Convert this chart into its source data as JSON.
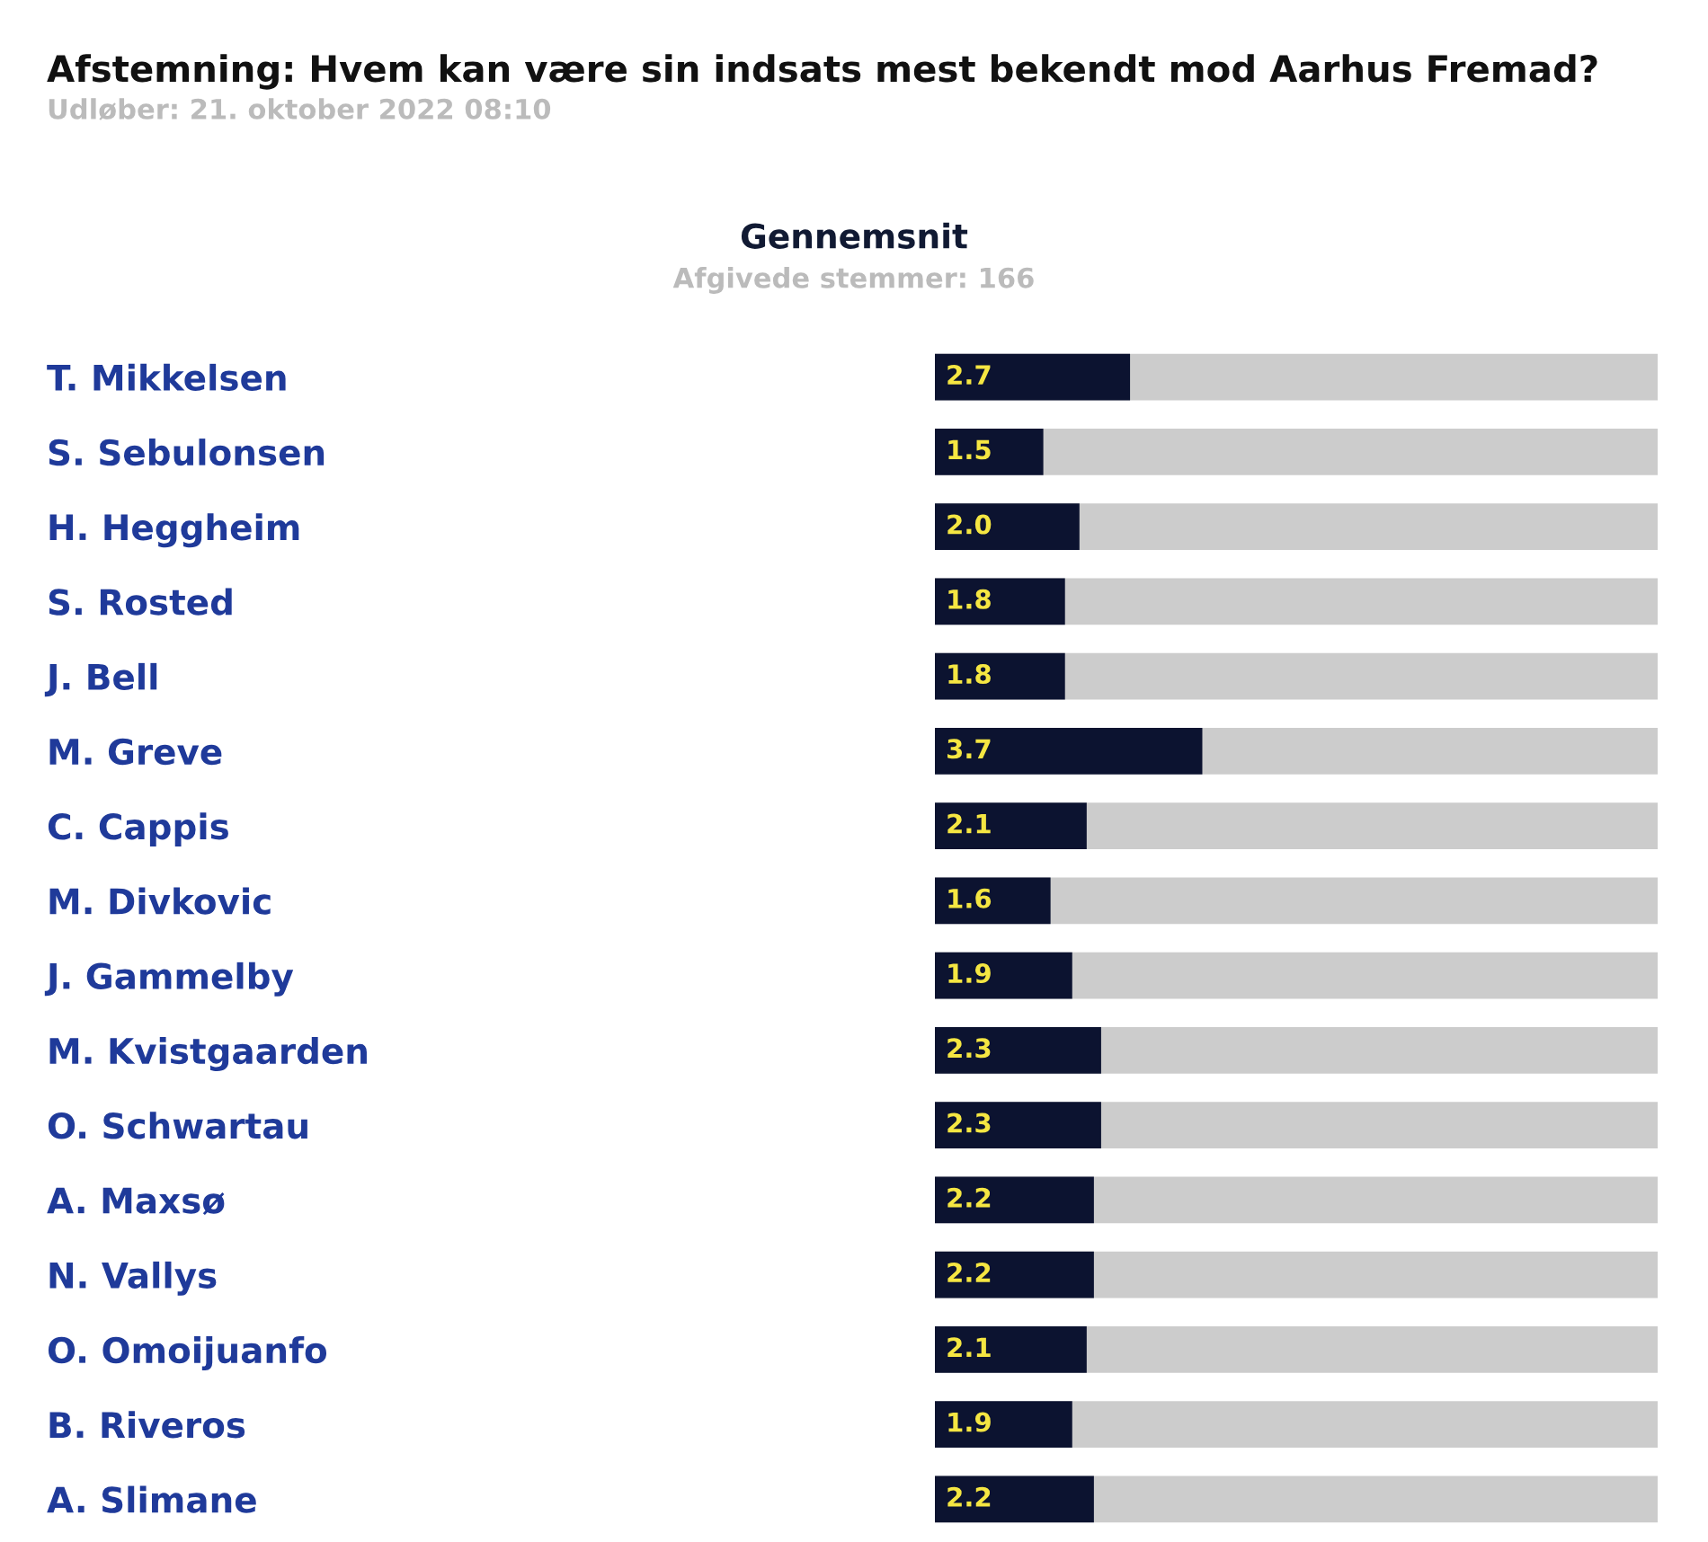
{
  "chart_data": {
    "type": "bar",
    "orientation": "horizontal",
    "title": "Afstemning: Hvem kan være sin indsats mest bekendt mod Aarhus Fremad?",
    "subtitle": "Udløber: 21. oktober 2022 08:10",
    "annotations": [
      "Gennemsnit",
      "Afgivede stemmer: 166"
    ],
    "categories": [
      "T. Mikkelsen",
      "S. Sebulonsen",
      "H. Heggheim",
      "S. Rosted",
      "J. Bell",
      "M. Greve",
      "C. Cappis",
      "M. Divkovic",
      "J. Gammelby",
      "M. Kvistgaarden",
      "O. Schwartau",
      "A. Maxsø",
      "N. Vallys",
      "O. Omoijuanfo",
      "B. Riveros",
      "A. Slimane"
    ],
    "values": [
      2.7,
      1.5,
      2.0,
      1.8,
      1.8,
      3.7,
      2.1,
      1.6,
      1.9,
      2.3,
      2.3,
      2.2,
      2.2,
      2.1,
      1.9,
      2.2
    ],
    "value_labels": [
      "2.7",
      "1.5",
      "2.0",
      "1.8",
      "1.8",
      "3.7",
      "2.1",
      "1.6",
      "1.9",
      "2.3",
      "2.3",
      "2.2",
      "2.2",
      "2.1",
      "1.9",
      "2.2"
    ],
    "color": "#0c1330",
    "xlim": [
      0,
      10
    ],
    "tick_labels": "y",
    "grid": false,
    "legend": false
  }
}
